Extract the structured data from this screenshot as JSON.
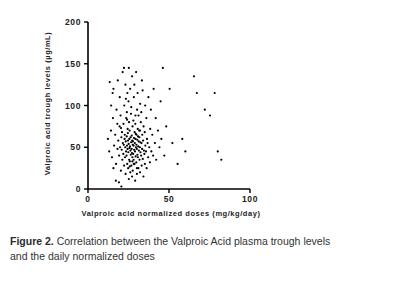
{
  "chart_data": {
    "type": "scatter",
    "x_label": "Valproic acid normalized doses (mg/kg/day)",
    "y_label": "Valproic acid trough levels (µg/mL)",
    "caption": {
      "label": "Figure 2.",
      "text": "Correlation between the Valproic Acid plasma trough levels and the daily normalized doses"
    },
    "xlim": [
      0,
      100
    ],
    "xticks": [
      0,
      50,
      100
    ],
    "ylim": [
      0,
      200
    ],
    "yticks": [
      0,
      50,
      100,
      150,
      200
    ],
    "grid": false,
    "color": "#000000",
    "marker": "circle",
    "x": [
      12.3,
      13.1,
      14.2,
      14.8,
      15.4,
      16.1,
      15.7,
      17.3,
      16.8,
      18.2,
      17.6,
      18.4,
      19.2,
      18.7,
      19.5,
      20.3,
      19.8,
      20.6,
      20.1,
      19.6,
      21.2,
      20.8,
      21.5,
      21.0,
      21.4,
      22.3,
      21.8,
      22.1,
      22.6,
      21.9,
      22.4,
      23.2,
      22.8,
      23.5,
      23.0,
      23.3,
      22.7,
      23.6,
      23.1,
      24.2,
      23.8,
      24.4,
      24.1,
      24.7,
      23.9,
      24.5,
      24.0,
      24.3,
      25.2,
      24.8,
      25.4,
      24.9,
      25.6,
      25.1,
      25.5,
      24.6,
      25.3,
      25.0,
      25.2,
      26.1,
      25.8,
      26.4,
      26.2,
      25.9,
      26.6,
      26.3,
      25.7,
      26.5,
      26.0,
      27.2,
      26.8,
      27.4,
      27.1,
      26.9,
      27.6,
      27.3,
      27.0,
      27.5,
      26.7,
      27.2,
      27.6,
      28.2,
      27.9,
      28.5,
      28.1,
      27.7,
      28.4,
      28.8,
      28.0,
      28.3,
      29.1,
      28.7,
      29.4,
      29.0,
      29.6,
      28.9,
      29.3,
      29.5,
      29.2,
      28.6,
      30.2,
      29.8,
      30.5,
      30.1,
      29.9,
      30.4,
      30.0,
      30.7,
      30.3,
      29.7,
      31.1,
      30.8,
      31.4,
      31.0,
      31.3,
      30.9,
      31.6,
      31.2,
      30.6,
      32.1,
      31.8,
      32.4,
      32.0,
      32.3,
      31.7,
      32.6,
      32.2,
      33.1,
      32.8,
      33.4,
      33.0,
      33.5,
      32.9,
      33.3,
      34.2,
      33.8,
      34.5,
      34.0,
      34.3,
      33.7,
      35.1,
      34.8,
      35.4,
      35.0,
      35.3,
      36.2,
      35.8,
      36.4,
      36.0,
      37.1,
      36.8,
      37.3,
      38.2,
      37.8,
      38.4,
      39.1,
      38.8,
      40.2,
      39.7,
      40.5,
      41.3,
      42.1,
      41.8,
      43.2,
      44.1,
      45.3,
      44.8,
      46.2,
      47.1,
      48.3,
      50.4,
      52.1,
      55.3,
      58.2,
      60.1,
      65.4,
      67.2,
      72.1,
      75.3,
      78.2,
      80.1,
      82.3,
      14.3,
      15.7,
      17.2,
      19.1,
      20.6,
      22.2,
      18.1,
      13.4,
      15.2,
      20.4,
      24.1,
      25.8,
      28.3,
      30.2,
      32.1,
      27.4,
      29.3,
      23.4
    ],
    "values": [
      60,
      45,
      70,
      38,
      85,
      52,
      120,
      30,
      65,
      48,
      95,
      130,
      40,
      58,
      75,
      22,
      50,
      62,
      88,
      110,
      35,
      47,
      55,
      68,
      140,
      28,
      42,
      53,
      60,
      78,
      100,
      18,
      38,
      45,
      50,
      57,
      65,
      85,
      125,
      30,
      40,
      48,
      52,
      58,
      63,
      72,
      92,
      115,
      12,
      25,
      35,
      44,
      49,
      54,
      60,
      67,
      80,
      105,
      145,
      20,
      33,
      41,
      46,
      51,
      56,
      62,
      70,
      90,
      120,
      15,
      28,
      38,
      43,
      48,
      53,
      58,
      64,
      75,
      98,
      135,
      22,
      35,
      42,
      47,
      52,
      57,
      61,
      68,
      82,
      110,
      10,
      30,
      39,
      45,
      50,
      55,
      60,
      66,
      78,
      125,
      18,
      32,
      41,
      48,
      53,
      59,
      65,
      72,
      95,
      140,
      25,
      38,
      46,
      51,
      57,
      63,
      70,
      88,
      115,
      20,
      35,
      44,
      50,
      56,
      62,
      80,
      102,
      28,
      40,
      48,
      55,
      65,
      92,
      130,
      15,
      36,
      46,
      58,
      75,
      118,
      30,
      42,
      52,
      68,
      100,
      25,
      45,
      60,
      85,
      38,
      55,
      110,
      32,
      50,
      72,
      45,
      95,
      40,
      65,
      120,
      55,
      35,
      85,
      70,
      50,
      60,
      105,
      145,
      40,
      75,
      120,
      55,
      30,
      60,
      45,
      135,
      115,
      95,
      88,
      115,
      45,
      35,
      100,
      25,
      10,
      8,
      3,
      145,
      78,
      128,
      115,
      73,
      83,
      27,
      30,
      25,
      70,
      33,
      88,
      108
    ]
  }
}
